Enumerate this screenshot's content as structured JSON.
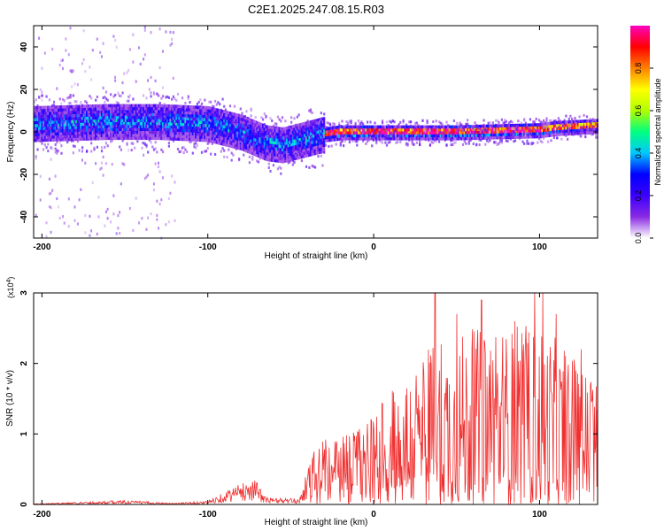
{
  "title": "C2E1.2025.247.08.15.R03",
  "chart_data": [
    {
      "type": "heatmap",
      "title": "C2E1.2025.247.08.15.R03",
      "xlabel": "Height of straight line (km)",
      "ylabel": "Frequency (Hz)",
      "xlim": [
        -205,
        135
      ],
      "ylim": [
        -50,
        50
      ],
      "xticks": [
        -200,
        -100,
        0,
        100
      ],
      "yticks": [
        -40,
        -20,
        0,
        20,
        40
      ],
      "colorbar": {
        "label": "Normalized spectral amplitude",
        "range": [
          0.0,
          1.0
        ],
        "ticks": [
          "0.0",
          "0.2",
          "0.4",
          "0.6",
          "0.8"
        ],
        "colormap": [
          "#ffffff",
          "#8a2be2",
          "#3b00ff",
          "#0000ff",
          "#00c8ff",
          "#00ff80",
          "#b0ff00",
          "#ffff00",
          "#ff8000",
          "#ff0000",
          "#ff00c0"
        ]
      },
      "band_center": [
        {
          "x": -205,
          "y": 4
        },
        {
          "x": -160,
          "y": 5
        },
        {
          "x": -130,
          "y": 5
        },
        {
          "x": -100,
          "y": 4
        },
        {
          "x": -80,
          "y": 0
        },
        {
          "x": -65,
          "y": -5
        },
        {
          "x": -55,
          "y": -6
        },
        {
          "x": -40,
          "y": -3
        },
        {
          "x": -30,
          "y": -1
        },
        {
          "x": -20,
          "y": 0
        },
        {
          "x": 0,
          "y": 0
        },
        {
          "x": 50,
          "y": 0
        },
        {
          "x": 100,
          "y": 1
        },
        {
          "x": 110,
          "y": 2
        },
        {
          "x": 135,
          "y": 3
        }
      ]
    },
    {
      "type": "line",
      "xlabel": "Height of straight line (km)",
      "ylabel": "SNR (10 * v/v)",
      "scale_label": "(x10",
      "scale_exponent": "4",
      "scale_close": ")",
      "xlim": [
        -205,
        135
      ],
      "ylim": [
        0,
        3
      ],
      "xticks": [
        -200,
        -100,
        0,
        100
      ],
      "yticks": [
        0,
        1,
        2,
        3
      ],
      "line_color": "#f03030",
      "envelope": [
        {
          "x": -205,
          "y": 0.01
        },
        {
          "x": -150,
          "y": 0.06
        },
        {
          "x": -120,
          "y": 0.02
        },
        {
          "x": -100,
          "y": 0.05
        },
        {
          "x": -85,
          "y": 0.25
        },
        {
          "x": -72,
          "y": 0.38
        },
        {
          "x": -65,
          "y": 0.1
        },
        {
          "x": -45,
          "y": 0.08
        },
        {
          "x": -35,
          "y": 0.9
        },
        {
          "x": -20,
          "y": 0.95
        },
        {
          "x": 0,
          "y": 1.3
        },
        {
          "x": 20,
          "y": 1.9
        },
        {
          "x": 40,
          "y": 2.4
        },
        {
          "x": 60,
          "y": 2.5
        },
        {
          "x": 80,
          "y": 2.5
        },
        {
          "x": 100,
          "y": 2.6
        },
        {
          "x": 120,
          "y": 2.1
        },
        {
          "x": 135,
          "y": 1.8
        }
      ],
      "peaks": [
        {
          "x": 37,
          "y": 3.0
        },
        {
          "x": 97,
          "y": 3.0
        },
        {
          "x": 102,
          "y": 3.0
        },
        {
          "x": 50,
          "y": 2.7
        },
        {
          "x": 65,
          "y": 2.9
        },
        {
          "x": 85,
          "y": 2.6
        },
        {
          "x": 110,
          "y": 2.7
        },
        {
          "x": 125,
          "y": 2.2
        }
      ]
    }
  ]
}
